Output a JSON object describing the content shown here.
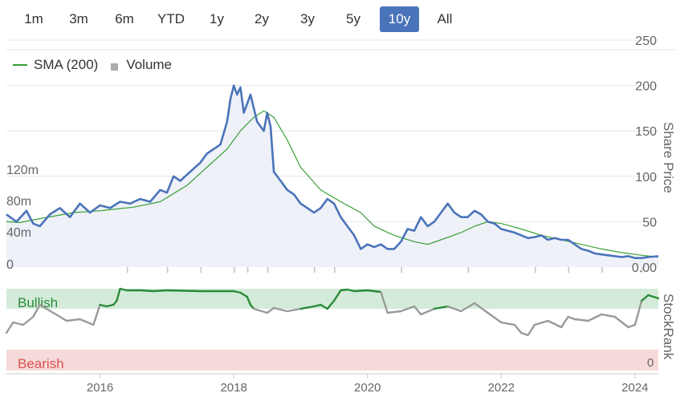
{
  "range_selector": {
    "buttons": [
      "1m",
      "3m",
      "6m",
      "YTD",
      "1y",
      "2y",
      "3y",
      "5y",
      "10y",
      "All"
    ],
    "active": "10y"
  },
  "legend": {
    "sma_label": "SMA (200)",
    "volume_label": "Volume"
  },
  "colors": {
    "price": "#4a74b9",
    "price_fill": "#eef1f8",
    "sma": "#3aa035",
    "volume": "#c4c4c4",
    "rank_up": "#2a8a3a",
    "rank_down": "#9a9a9a",
    "bullish_band": "#d4ebd9",
    "bearish_band": "#f6d9d9",
    "bullish_text": "#2a8a3a",
    "bearish_text": "#d9534f",
    "axis_text": "#666666"
  },
  "chart_data": [
    {
      "type": "line",
      "title": "",
      "ylabel": "Share Price",
      "ylim": [
        0,
        250
      ],
      "yticks": [
        0,
        50,
        100,
        150,
        200,
        250
      ],
      "ytick_labels": [
        "0.00",
        "50",
        "100",
        "150",
        "200",
        "250"
      ],
      "volume_ticks": [
        "0",
        "40m",
        "80m",
        "120m"
      ],
      "xlim": [
        2014.6,
        2024.35
      ],
      "xticks": [
        2016,
        2018,
        2020,
        2022,
        2024
      ],
      "series": [
        {
          "name": "Price",
          "x": [
            2014.6,
            2014.75,
            2014.9,
            2015.0,
            2015.1,
            2015.25,
            2015.4,
            2015.55,
            2015.7,
            2015.85,
            2016.0,
            2016.15,
            2016.3,
            2016.45,
            2016.6,
            2016.75,
            2016.9,
            2017.0,
            2017.1,
            2017.2,
            2017.35,
            2017.5,
            2017.6,
            2017.7,
            2017.8,
            2017.9,
            2017.95,
            2018.0,
            2018.05,
            2018.1,
            2018.15,
            2018.25,
            2018.35,
            2018.45,
            2018.5,
            2018.55,
            2018.6,
            2018.7,
            2018.8,
            2018.9,
            2019.0,
            2019.1,
            2019.2,
            2019.3,
            2019.4,
            2019.5,
            2019.6,
            2019.7,
            2019.8,
            2019.9,
            2020.0,
            2020.1,
            2020.2,
            2020.3,
            2020.4,
            2020.5,
            2020.6,
            2020.7,
            2020.8,
            2020.9,
            2021.0,
            2021.1,
            2021.2,
            2021.3,
            2021.4,
            2021.5,
            2021.6,
            2021.7,
            2021.8,
            2021.9,
            2022.0,
            2022.1,
            2022.2,
            2022.3,
            2022.4,
            2022.5,
            2022.6,
            2022.7,
            2022.8,
            2022.9,
            2023.0,
            2023.1,
            2023.2,
            2023.3,
            2023.4,
            2023.5,
            2023.6,
            2023.7,
            2023.8,
            2023.9,
            2024.0,
            2024.1,
            2024.2,
            2024.35
          ],
          "values": [
            58,
            50,
            62,
            48,
            45,
            58,
            65,
            55,
            70,
            60,
            68,
            65,
            72,
            70,
            75,
            72,
            85,
            82,
            100,
            95,
            105,
            115,
            125,
            130,
            135,
            160,
            185,
            200,
            190,
            198,
            170,
            190,
            160,
            150,
            170,
            155,
            105,
            95,
            85,
            80,
            70,
            65,
            60,
            65,
            75,
            70,
            55,
            45,
            35,
            20,
            25,
            22,
            25,
            20,
            20,
            28,
            42,
            40,
            55,
            45,
            50,
            60,
            70,
            60,
            55,
            55,
            62,
            58,
            50,
            48,
            42,
            40,
            38,
            35,
            32,
            33,
            35,
            30,
            32,
            30,
            30,
            25,
            20,
            18,
            15,
            14,
            13,
            12,
            11,
            12,
            10,
            10,
            11,
            12
          ]
        },
        {
          "name": "SMA (200)",
          "x": [
            2014.6,
            2014.8,
            2015.0,
            2015.3,
            2015.6,
            2016.0,
            2016.5,
            2016.9,
            2017.3,
            2017.6,
            2017.9,
            2018.1,
            2018.3,
            2018.45,
            2018.6,
            2018.8,
            2019.0,
            2019.3,
            2019.6,
            2019.9,
            2020.1,
            2020.4,
            2020.7,
            2020.9,
            2021.1,
            2021.4,
            2021.6,
            2021.8,
            2022.0,
            2022.3,
            2022.6,
            2022.9,
            2023.2,
            2023.5,
            2023.8,
            2024.1,
            2024.35
          ],
          "values": [
            50,
            49,
            52,
            56,
            60,
            62,
            66,
            72,
            90,
            110,
            130,
            150,
            165,
            172,
            165,
            140,
            110,
            85,
            72,
            60,
            45,
            35,
            28,
            25,
            30,
            38,
            45,
            50,
            48,
            42,
            35,
            30,
            25,
            20,
            16,
            13,
            11
          ]
        },
        {
          "name": "Volume",
          "x": [
            2016.4,
            2017.0,
            2017.5,
            2018.0,
            2018.2,
            2018.5,
            2019.2,
            2019.5,
            2020.5,
            2021.5,
            2022.5,
            2023.0,
            2023.5,
            2024.1
          ],
          "values": [
            7,
            10,
            19,
            14,
            9,
            10,
            17,
            11,
            13,
            10,
            8,
            10,
            8,
            14
          ],
          "unit": "m (approx. peaks)"
        }
      ]
    },
    {
      "type": "line",
      "ylabel": "StockRank",
      "ytick_labels": [
        "0"
      ],
      "ylim": [
        0,
        100
      ],
      "bands": [
        {
          "label": "Bullish",
          "range": [
            85,
            100
          ]
        },
        {
          "label": "Bearish",
          "range": [
            0,
            15
          ]
        }
      ],
      "series": [
        {
          "name": "StockRank",
          "x": [
            2014.6,
            2014.7,
            2014.85,
            2015.0,
            2015.1,
            2015.3,
            2015.5,
            2015.7,
            2015.9,
            2016.0,
            2016.1,
            2016.2,
            2016.25,
            2016.3,
            2016.4,
            2016.6,
            2016.8,
            2017.0,
            2017.5,
            2018.0,
            2018.1,
            2018.2,
            2018.25,
            2018.3,
            2018.5,
            2018.6,
            2018.8,
            2019.0,
            2019.2,
            2019.3,
            2019.4,
            2019.5,
            2019.6,
            2019.7,
            2019.8,
            2020.0,
            2020.2,
            2020.3,
            2020.5,
            2020.7,
            2020.8,
            2021.0,
            2021.2,
            2021.4,
            2021.6,
            2021.8,
            2022.0,
            2022.2,
            2022.3,
            2022.4,
            2022.5,
            2022.7,
            2022.9,
            2023.0,
            2023.1,
            2023.3,
            2023.5,
            2023.7,
            2023.9,
            2024.0,
            2024.1,
            2024.2,
            2024.35
          ],
          "values": [
            45,
            58,
            55,
            65,
            80,
            70,
            60,
            62,
            55,
            80,
            78,
            80,
            85,
            100,
            98,
            98,
            97,
            98,
            97,
            97,
            95,
            90,
            80,
            75,
            70,
            76,
            72,
            75,
            78,
            80,
            75,
            85,
            98,
            99,
            97,
            98,
            96,
            70,
            72,
            78,
            68,
            75,
            78,
            72,
            82,
            70,
            58,
            55,
            45,
            42,
            55,
            60,
            52,
            65,
            62,
            60,
            68,
            65,
            52,
            55,
            85,
            92,
            88
          ]
        }
      ]
    }
  ]
}
